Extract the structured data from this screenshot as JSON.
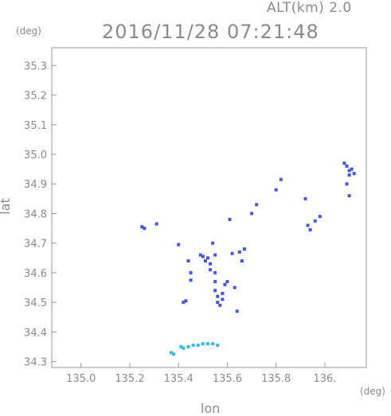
{
  "header": {
    "altitude": "ALT(km) 2.0",
    "timestamp": "2016/11/28 07:21:48"
  },
  "chart_data": {
    "type": "scatter",
    "title": "2016/11/28 07:21:48",
    "subtitle": "ALT(km) 2.0",
    "xlabel": "lon",
    "ylabel": "lat",
    "x_unit": "(deg)",
    "y_unit": "(deg)",
    "xlim": [
      134.88,
      136.17
    ],
    "ylim": [
      34.28,
      35.36
    ],
    "x_ticks": [
      135.0,
      135.2,
      135.4,
      135.6,
      135.8,
      136.0
    ],
    "x_tick_labels": [
      "135.0",
      "135.2",
      "135.4",
      "135.6",
      "135.8",
      "136."
    ],
    "y_ticks": [
      34.3,
      34.4,
      34.5,
      34.6,
      34.7,
      34.8,
      34.9,
      35.0,
      35.1,
      35.2,
      35.3
    ],
    "y_tick_labels": [
      "34.3",
      "34.4",
      "34.5",
      "34.6",
      "34.7",
      "34.8",
      "34.9",
      "35.0",
      "35.1",
      "35.2",
      "35.3"
    ],
    "grid": false,
    "colors": {
      "echo_blue": "#4455ee",
      "echo_light": "#33bbee",
      "axis": "#999999"
    },
    "series": [
      {
        "color": "#4455ee",
        "points": [
          [
            135.25,
            34.755
          ],
          [
            135.26,
            34.75
          ],
          [
            135.31,
            34.765
          ],
          [
            135.4,
            34.695
          ],
          [
            135.42,
            34.5
          ],
          [
            135.43,
            34.505
          ],
          [
            135.44,
            34.64
          ],
          [
            135.45,
            34.6
          ],
          [
            135.45,
            34.575
          ],
          [
            135.49,
            34.66
          ],
          [
            135.5,
            34.655
          ],
          [
            135.51,
            34.64
          ],
          [
            135.52,
            34.65
          ],
          [
            135.53,
            34.63
          ],
          [
            135.53,
            34.61
          ],
          [
            135.54,
            34.7
          ],
          [
            135.55,
            34.66
          ],
          [
            135.55,
            34.6
          ],
          [
            135.55,
            34.57
          ],
          [
            135.55,
            34.54
          ],
          [
            135.56,
            34.52
          ],
          [
            135.56,
            34.5
          ],
          [
            135.57,
            34.49
          ],
          [
            135.58,
            34.53
          ],
          [
            135.58,
            34.51
          ],
          [
            135.59,
            34.56
          ],
          [
            135.6,
            34.57
          ],
          [
            135.61,
            34.78
          ],
          [
            135.62,
            34.665
          ],
          [
            135.63,
            34.55
          ],
          [
            135.64,
            34.47
          ],
          [
            135.65,
            34.67
          ],
          [
            135.66,
            34.64
          ],
          [
            135.67,
            34.68
          ],
          [
            135.7,
            34.8
          ],
          [
            135.72,
            34.83
          ],
          [
            135.8,
            34.88
          ],
          [
            135.82,
            34.915
          ],
          [
            135.92,
            34.85
          ],
          [
            135.93,
            34.76
          ],
          [
            135.94,
            34.745
          ],
          [
            135.96,
            34.775
          ],
          [
            135.98,
            34.79
          ],
          [
            136.08,
            34.97
          ],
          [
            136.09,
            34.96
          ],
          [
            136.1,
            34.945
          ],
          [
            136.1,
            34.93
          ],
          [
            136.11,
            34.95
          ],
          [
            136.12,
            34.935
          ],
          [
            136.09,
            34.9
          ],
          [
            136.1,
            34.86
          ]
        ]
      },
      {
        "color": "#33bbee",
        "points": [
          [
            135.37,
            34.33
          ],
          [
            135.38,
            34.325
          ],
          [
            135.41,
            34.35
          ],
          [
            135.42,
            34.345
          ],
          [
            135.44,
            34.35
          ],
          [
            135.46,
            34.355
          ],
          [
            135.48,
            34.355
          ],
          [
            135.5,
            34.36
          ],
          [
            135.52,
            34.36
          ],
          [
            135.54,
            34.36
          ],
          [
            135.56,
            34.355
          ]
        ]
      }
    ]
  }
}
